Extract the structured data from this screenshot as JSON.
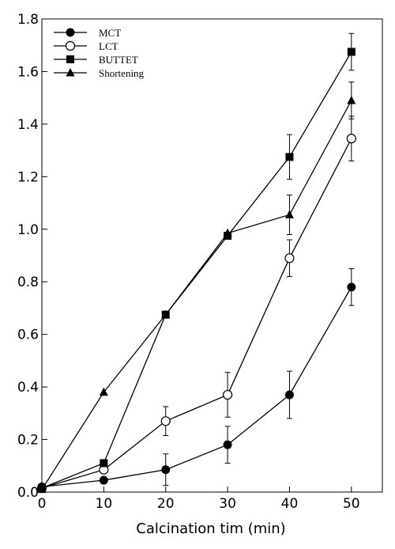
{
  "chart_data": {
    "type": "line",
    "title": "",
    "xlabel": "Calcination tim (min)",
    "ylabel": "",
    "x": [
      0,
      10,
      20,
      30,
      40,
      50
    ],
    "xlim": [
      0,
      55
    ],
    "ylim": [
      0,
      1.8
    ],
    "xticks": [
      0,
      10,
      20,
      30,
      40,
      50
    ],
    "yticks": [
      0.0,
      0.2,
      0.4,
      0.6,
      0.8,
      1.0,
      1.2,
      1.4,
      1.6,
      1.8
    ],
    "xtick_labels": [
      "0",
      "10",
      "20",
      "30",
      "40",
      "50"
    ],
    "ytick_labels": [
      "0.0",
      "0.2",
      "0.4",
      "0.6",
      "0.8",
      "1.0",
      "1.2",
      "1.4",
      "1.6",
      "1.8"
    ],
    "grid": false,
    "legend_position": "top-left",
    "series": [
      {
        "name": "MCT",
        "marker": "filled-circle",
        "values": [
          0.02,
          0.045,
          0.085,
          0.18,
          0.37,
          0.78
        ],
        "errors": [
          0,
          0,
          0.06,
          0.07,
          0.09,
          0.07
        ]
      },
      {
        "name": "LCT",
        "marker": "open-circle",
        "values": [
          0.015,
          0.085,
          0.27,
          0.37,
          0.89,
          1.345
        ],
        "errors": [
          0,
          0,
          0.055,
          0.085,
          0.07,
          0.085
        ]
      },
      {
        "name": "BUTTET",
        "marker": "filled-square",
        "values": [
          0.015,
          0.11,
          0.675,
          0.975,
          1.275,
          1.675
        ],
        "errors": [
          0,
          0,
          0,
          0,
          0.085,
          0.07
        ]
      },
      {
        "name": "Shortening",
        "marker": "filled-triangle",
        "values": [
          0.01,
          0.38,
          0.675,
          0.985,
          1.055,
          1.49
        ],
        "errors": [
          0,
          0,
          0,
          0,
          0.075,
          0.07
        ]
      }
    ]
  }
}
